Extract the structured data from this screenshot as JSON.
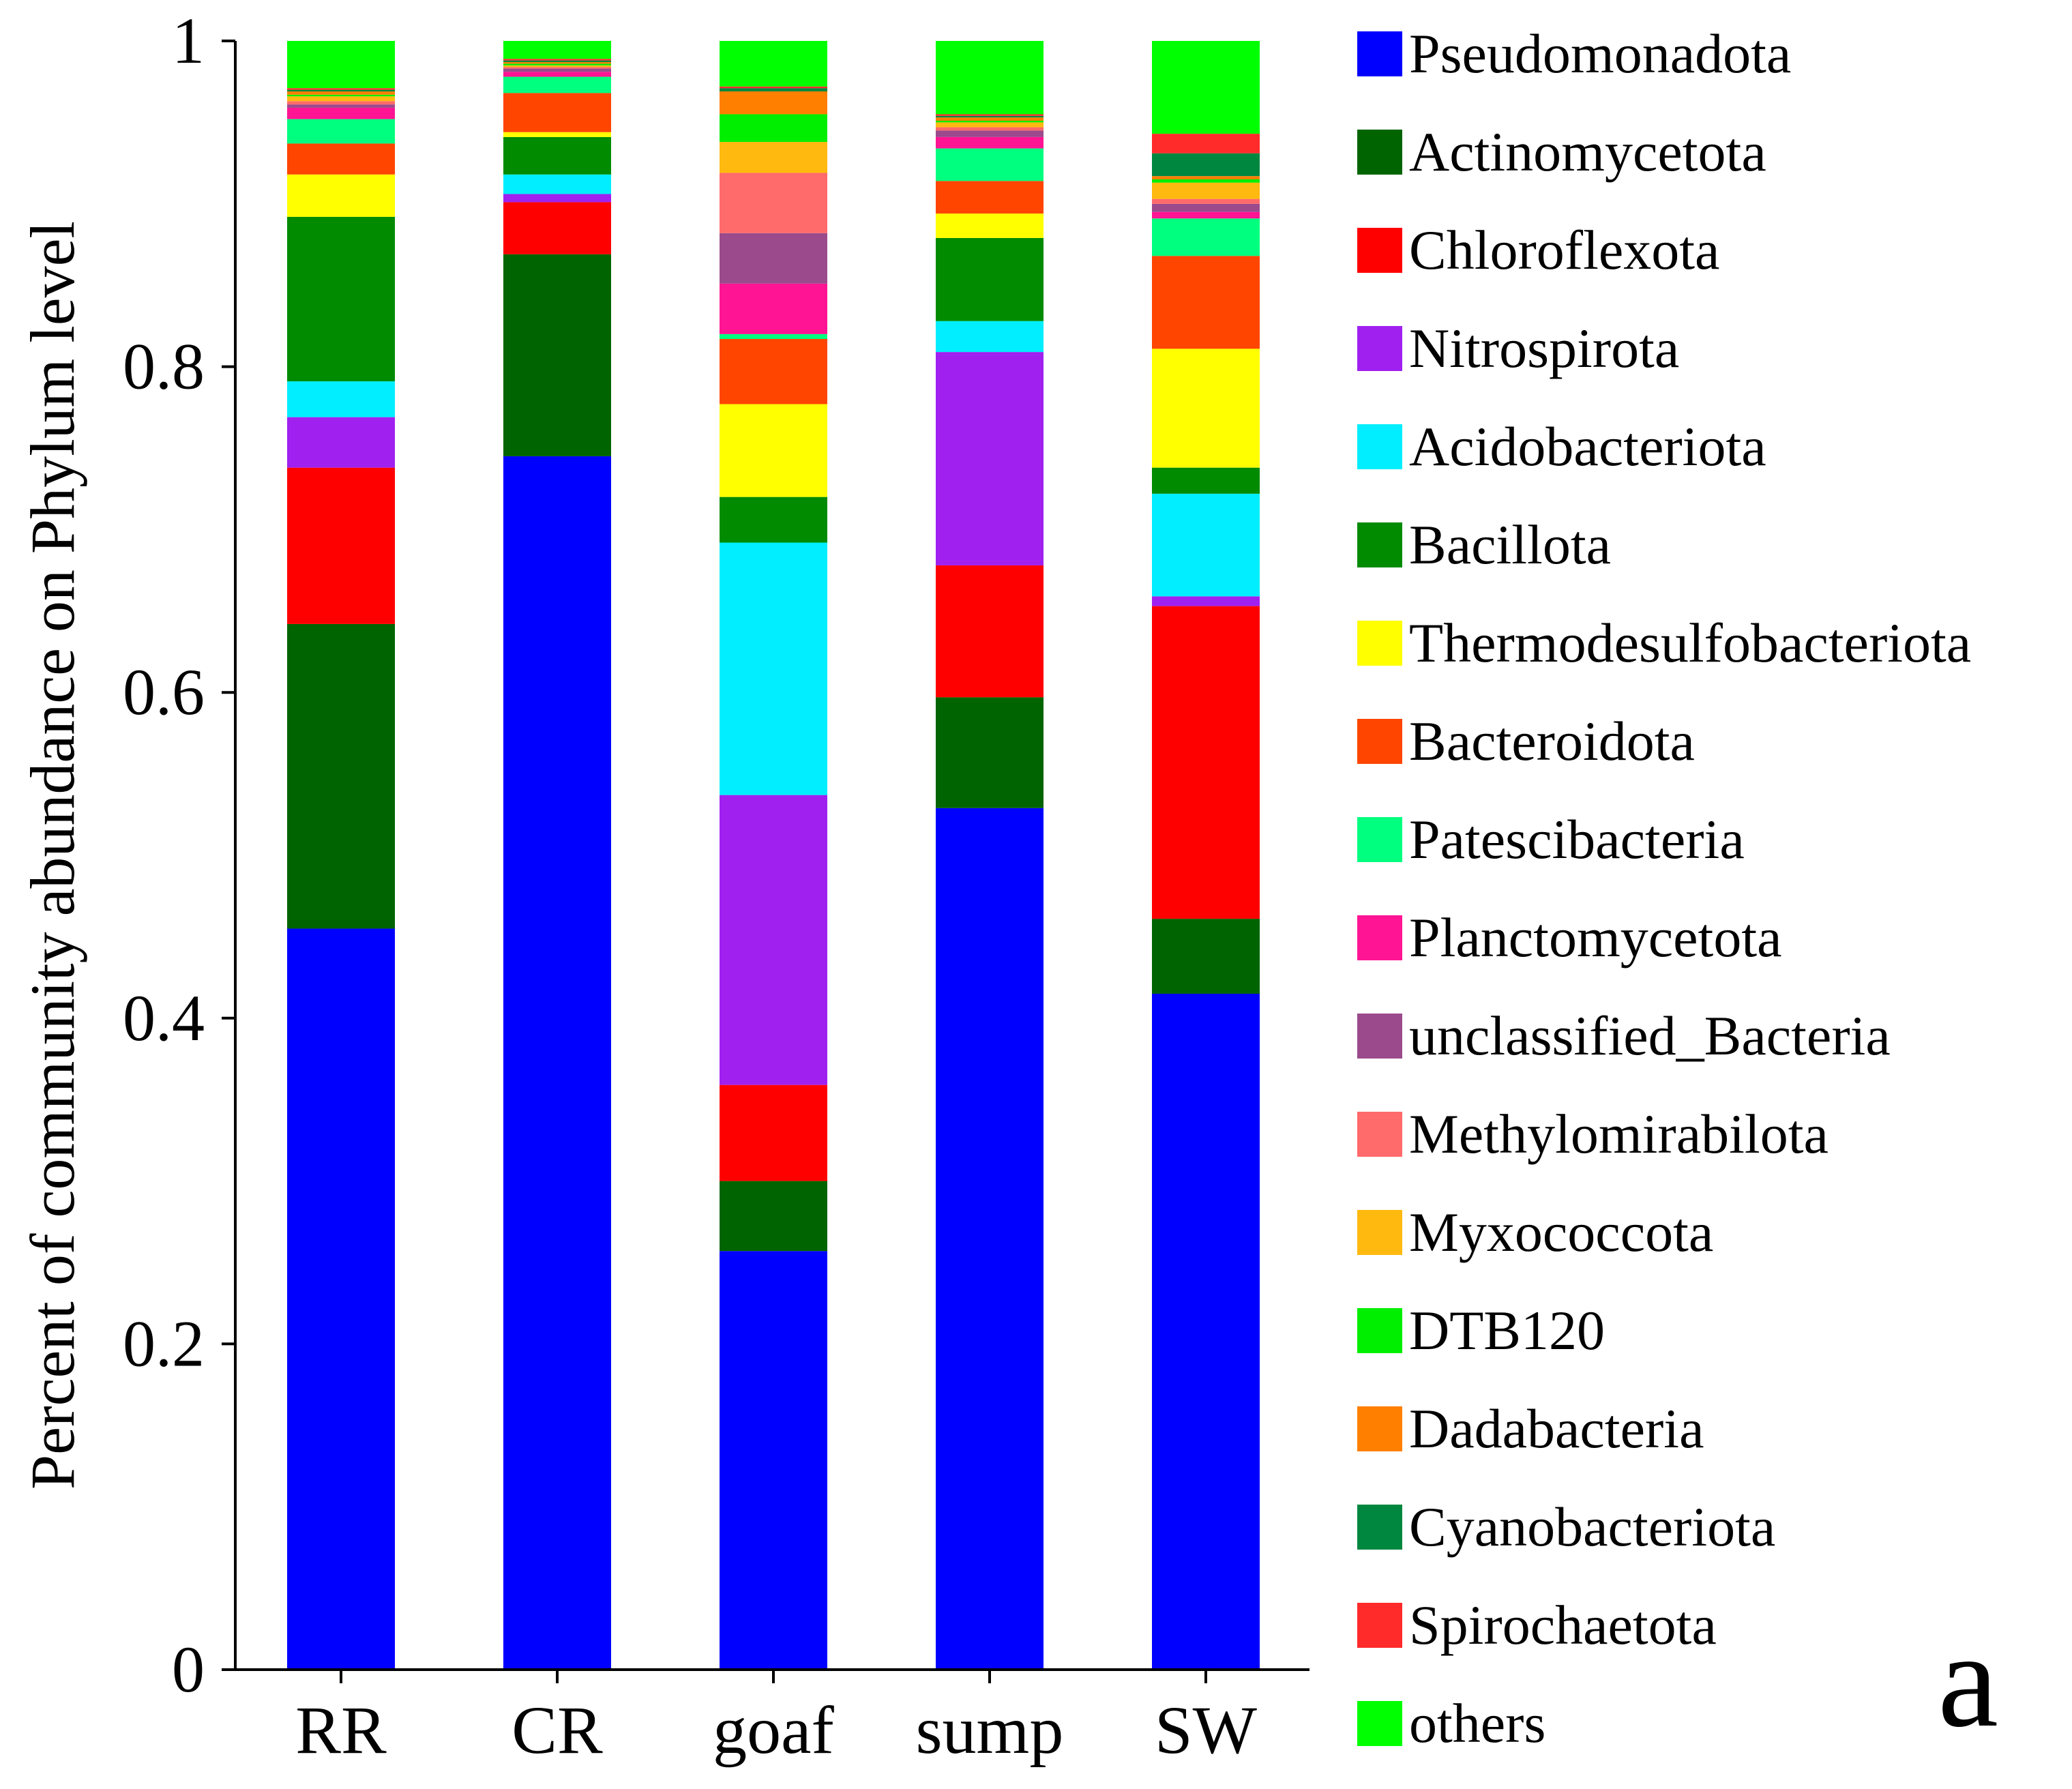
{
  "chart_data": {
    "type": "bar",
    "stacked": true,
    "title": "",
    "xlabel": "",
    "ylabel": "Percent of community abundance on Phylum level",
    "ylim": [
      0,
      1
    ],
    "yticks": [
      "0",
      "0.2",
      "0.4",
      "0.6",
      "0.8",
      "1"
    ],
    "categories": [
      "RR",
      "CR",
      "goaf",
      "sump",
      "SW"
    ],
    "panel_label": "a",
    "legend_position": "right",
    "series": [
      {
        "name": "Pseudomonadota",
        "color": "#0000FF",
        "values": [
          0.455,
          0.745,
          0.257,
          0.529,
          0.415
        ]
      },
      {
        "name": "Actinomycetota",
        "color": "#006400",
        "values": [
          0.187,
          0.124,
          0.043,
          0.068,
          0.046
        ]
      },
      {
        "name": "Chloroflexota",
        "color": "#FF0000",
        "values": [
          0.096,
          0.032,
          0.059,
          0.081,
          0.192
        ]
      },
      {
        "name": "Nitrospirota",
        "color": "#A020F0",
        "values": [
          0.031,
          0.005,
          0.178,
          0.131,
          0.006
        ]
      },
      {
        "name": "Acidobacteriota",
        "color": "#00EEFF",
        "values": [
          0.022,
          0.012,
          0.155,
          0.019,
          0.063
        ]
      },
      {
        "name": "Bacillota",
        "color": "#008B00",
        "values": [
          0.101,
          0.023,
          0.028,
          0.051,
          0.016
        ]
      },
      {
        "name": "Thermodesulfobacteriota",
        "color": "#FFFF00",
        "values": [
          0.026,
          0.003,
          0.057,
          0.015,
          0.073
        ]
      },
      {
        "name": "Bacteroidota",
        "color": "#FF4500",
        "values": [
          0.019,
          0.024,
          0.04,
          0.02,
          0.057
        ]
      },
      {
        "name": "Patescibacteria",
        "color": "#00FF7F",
        "values": [
          0.015,
          0.01,
          0.003,
          0.02,
          0.023
        ]
      },
      {
        "name": "Planctomycetota",
        "color": "#FF1493",
        "values": [
          0.007,
          0.003,
          0.031,
          0.007,
          0.004
        ]
      },
      {
        "name": "unclassified_Bacteria",
        "color": "#9B4A8C",
        "values": [
          0.002,
          0.002,
          0.031,
          0.004,
          0.005
        ]
      },
      {
        "name": "Methylomirabilota",
        "color": "#FF6A6A",
        "values": [
          0.002,
          0.001,
          0.037,
          0.002,
          0.003
        ]
      },
      {
        "name": "Myxococcota",
        "color": "#FFB90F",
        "values": [
          0.003,
          0.001,
          0.019,
          0.003,
          0.01
        ]
      },
      {
        "name": "DTB120",
        "color": "#00EE00",
        "values": [
          0.001,
          0.001,
          0.017,
          0.001,
          0.002
        ]
      },
      {
        "name": "Dadabacteria",
        "color": "#FF7F00",
        "values": [
          0.002,
          0.001,
          0.014,
          0.002,
          0.002
        ]
      },
      {
        "name": "Cyanobacteriota",
        "color": "#00873F",
        "values": [
          0.001,
          0.001,
          0.002,
          0.001,
          0.014
        ]
      },
      {
        "name": "Spirochaetota",
        "color": "#FF2A2A",
        "values": [
          0.001,
          0.001,
          0.001,
          0.001,
          0.012
        ]
      },
      {
        "name": "others",
        "color": "#00FF00",
        "values": [
          0.029,
          0.011,
          0.028,
          0.045,
          0.057
        ]
      }
    ]
  }
}
